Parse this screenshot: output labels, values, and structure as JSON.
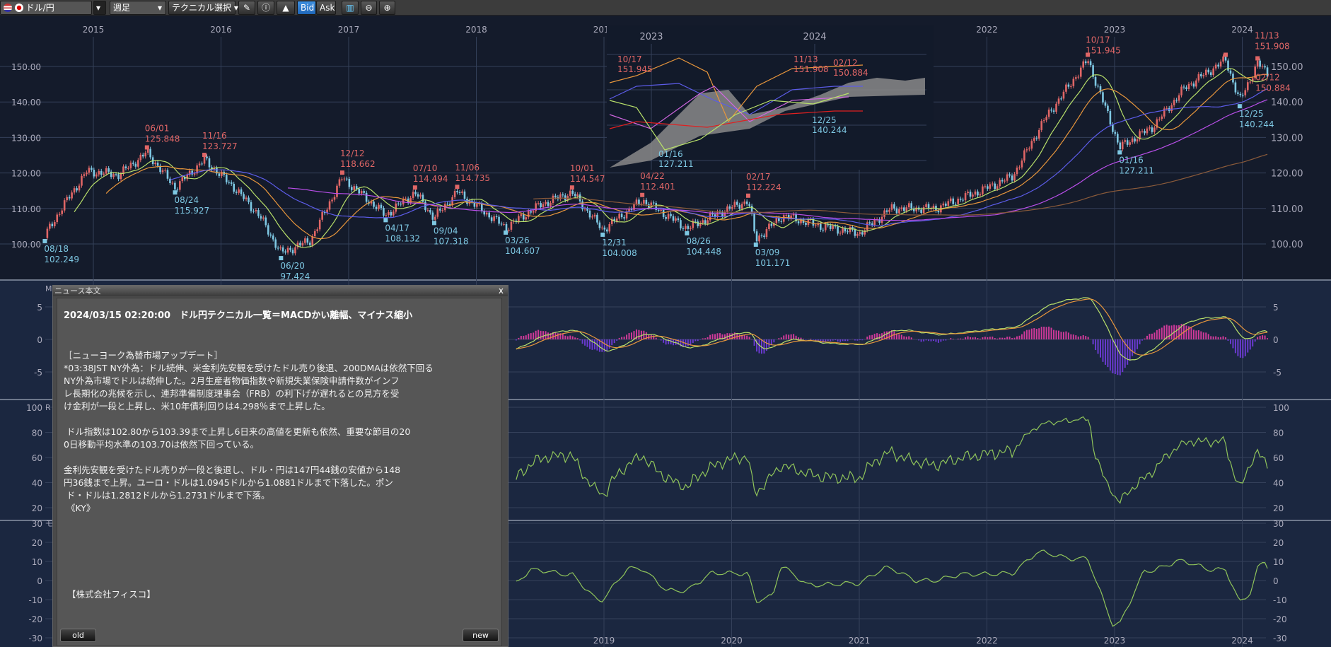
{
  "toolbar": {
    "currency_pair": "ドル/円",
    "period": "週足",
    "technical_select": "テクニカル選択",
    "bid_label": "Bid",
    "ask_label": "Ask",
    "icons": [
      "us-flag-icon",
      "jp-flag-icon",
      "pencil-icon",
      "info-icon",
      "mountain-chart-icon",
      "indicator-icon",
      "zoom-out-icon",
      "zoom-in-icon"
    ]
  },
  "chart": {
    "years": [
      "2015",
      "2016",
      "2017",
      "2018",
      "2019",
      "2020",
      "2021",
      "2022",
      "2023",
      "2024"
    ],
    "price_ticks": [
      "150.00",
      "140.00",
      "130.00",
      "120.00",
      "110.00",
      "100.00"
    ],
    "macd_ticks": [
      "5",
      "0",
      "-5"
    ],
    "rsi_ticks": [
      "100",
      "80",
      "60",
      "40",
      "20"
    ],
    "momentum_ticks": [
      "30",
      "20",
      "10",
      "0",
      "-10",
      "-20",
      "-30"
    ],
    "panel_labels": [
      "M",
      "R",
      "モ"
    ],
    "colors": {
      "up": "#e06666",
      "down": "#7ec8e3",
      "ma13": "#b8e06a",
      "ma26": "#e8963c",
      "ma52": "#5c5ce8",
      "ma100": "#b84ee8",
      "ma200": "#8a5a3a",
      "macd": "#b8e06a",
      "signal": "#e8963c",
      "hist_pos": "#d03a9a",
      "hist_neg": "#6a3ad0",
      "osc": "#8fc45a"
    },
    "price_path": [
      [
        "2014.62",
        102.2
      ],
      [
        "2014.75",
        110
      ],
      [
        "2014.95",
        120.5
      ],
      [
        "2015.2",
        119.5
      ],
      [
        "2015.42",
        125.8
      ],
      [
        "2015.64",
        115.9
      ],
      [
        "2015.87",
        123.7
      ],
      [
        "2016.1",
        116
      ],
      [
        "2016.3",
        108
      ],
      [
        "2016.47",
        97.4
      ],
      [
        "2016.7",
        101
      ],
      [
        "2016.95",
        118.7
      ],
      [
        "2017.29",
        108.1
      ],
      [
        "2017.52",
        114.5
      ],
      [
        "2017.67",
        107.3
      ],
      [
        "2017.85",
        114.7
      ],
      [
        "2018.23",
        104.6
      ],
      [
        "2018.5",
        111
      ],
      [
        "2018.75",
        114.5
      ],
      [
        "2018.99",
        104.0
      ],
      [
        "2019.3",
        112.4
      ],
      [
        "2019.65",
        104.4
      ],
      [
        "2019.95",
        109.5
      ],
      [
        "2020.13",
        112.2
      ],
      [
        "2020.19",
        101.2
      ],
      [
        "2020.4",
        108
      ],
      [
        "2020.7",
        105
      ],
      [
        "2021.0",
        103
      ],
      [
        "2021.25",
        110
      ],
      [
        "2021.6",
        110
      ],
      [
        "2021.95",
        115
      ],
      [
        "2022.2",
        119
      ],
      [
        "2022.45",
        135
      ],
      [
        "2022.79",
        151.9
      ],
      [
        "2023.04",
        127.2
      ],
      [
        "2023.3",
        133
      ],
      [
        "2023.55",
        144
      ],
      [
        "2023.87",
        151.9
      ],
      [
        "2023.98",
        140.2
      ],
      [
        "2024.12",
        150.9
      ],
      [
        "2024.2",
        148
      ]
    ],
    "highs": [
      {
        "date": "06/01",
        "price": "125.848",
        "t": 2015.42,
        "p": 125.8
      },
      {
        "date": "11/16",
        "price": "123.727",
        "t": 2015.87,
        "p": 123.7
      },
      {
        "date": "12/12",
        "price": "118.662",
        "t": 2016.95,
        "p": 118.7
      },
      {
        "date": "07/10",
        "price": "114.494",
        "t": 2017.52,
        "p": 114.5
      },
      {
        "date": "11/06",
        "price": "114.735",
        "t": 2017.85,
        "p": 114.7
      },
      {
        "date": "10/01",
        "price": "114.547",
        "t": 2018.75,
        "p": 114.5
      },
      {
        "date": "04/22",
        "price": "112.401",
        "t": 2019.3,
        "p": 112.4
      },
      {
        "date": "02/17",
        "price": "112.224",
        "t": 2020.13,
        "p": 112.2
      },
      {
        "date": "10/17",
        "price": "151.945",
        "t": 2022.79,
        "p": 151.9
      },
      {
        "date": "11/13",
        "price": "151.908",
        "t": 2023.87,
        "p": 151.9
      },
      {
        "date": "02/12",
        "price": "150.884",
        "t": 2024.12,
        "p": 150.9
      }
    ],
    "lows": [
      {
        "date": "08/18",
        "price": "102.249",
        "t": 2014.62,
        "p": 102.2
      },
      {
        "date": "08/24",
        "price": "115.927",
        "t": 2015.64,
        "p": 115.9
      },
      {
        "date": "06/20",
        "price": "97.424",
        "t": 2016.47,
        "p": 97.4
      },
      {
        "date": "04/17",
        "price": "108.132",
        "t": 2017.29,
        "p": 108.1
      },
      {
        "date": "09/04",
        "price": "107.318",
        "t": 2017.67,
        "p": 107.3
      },
      {
        "date": "03/26",
        "price": "104.607",
        "t": 2018.23,
        "p": 104.6
      },
      {
        "date": "12/31",
        "price": "104.008",
        "t": 2018.99,
        "p": 104.0
      },
      {
        "date": "08/26",
        "price": "104.448",
        "t": 2019.65,
        "p": 104.4
      },
      {
        "date": "03/09",
        "price": "101.171",
        "t": 2020.19,
        "p": 101.2
      },
      {
        "date": "01/16",
        "price": "127.211",
        "t": 2023.04,
        "p": 127.2
      },
      {
        "date": "12/25",
        "price": "140.244",
        "t": 2023.98,
        "p": 140.2
      }
    ],
    "inset": {
      "years": [
        "2023",
        "2024"
      ],
      "highs": [
        {
          "date": "10/17",
          "price": "151.945"
        },
        {
          "date": "11/13",
          "price": "151.908"
        },
        {
          "date": "02/12",
          "price": "150.884"
        }
      ],
      "lows": [
        {
          "date": "01/16",
          "price": "127.211"
        },
        {
          "date": "12/25",
          "price": "140.244"
        }
      ]
    }
  },
  "news": {
    "window_title": "ニュース本文",
    "close_label": "x",
    "headline": "2024/03/15 02:20:00　ドル円テクニカル一覧＝MACDかい離幅、マイナス縮小",
    "body": "［ニューヨーク為替市場アップデート］\n*03:38JST NY外為：ドル続伸、米金利先安観を受けたドル売り後退、200DMAは依然下回る\nNY外為市場でドルは続伸した。2月生産者物価指数や新規失業保険申請件数がインフ\nレ長期化の兆候を示し、連邦準備制度理事会（FRB）の利下げが遅れるとの見方を受\nけ金利が一段と上昇し、米10年債利回りは4.298％まで上昇した。\n\n ドル指数は102.80から103.39まで上昇し6日来の高値を更新も依然、重要な節目の20\n0日移動平均水準の103.70は依然下回っている。\n\n金利先安観を受けたドル売りが一段と後退し、ドル・円は147円44銭の安値から148\n円36銭まで上昇。ユーロ・ドルは1.0945ドルから1.0881ドルまで下落した。ポン\n ド・ドルは1.2812ドルから1.2731ドルまで下落。\n 《KY》",
    "company": "【株式会社フィスコ】",
    "old_label": "old",
    "new_label": "new"
  }
}
